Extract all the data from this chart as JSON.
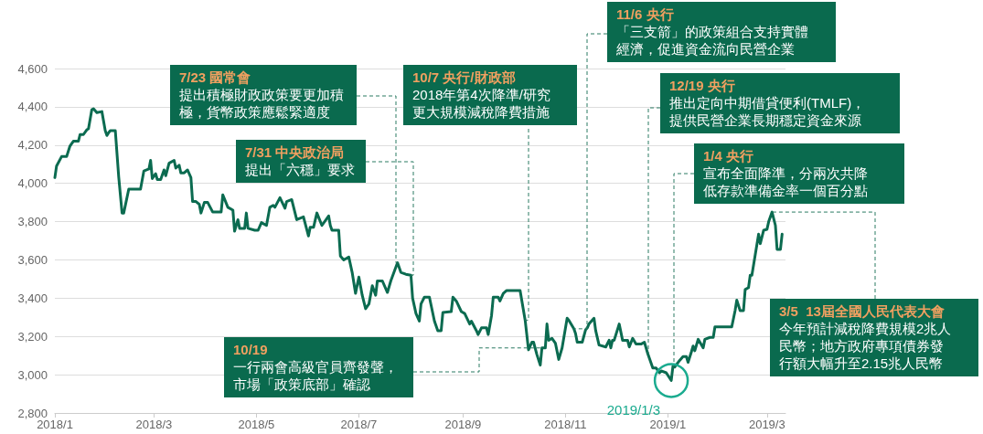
{
  "chart_data": {
    "type": "line",
    "grid": "y",
    "xlim": [
      "2018-01-01",
      "2019-03-12"
    ],
    "xticks": [
      {
        "value": "2018-01",
        "label": "2018/1"
      },
      {
        "value": "2018-03",
        "label": "2018/3"
      },
      {
        "value": "2018-05",
        "label": "2018/5"
      },
      {
        "value": "2018-07",
        "label": "2018/7"
      },
      {
        "value": "2018-09",
        "label": "2018/9"
      },
      {
        "value": "2018-11",
        "label": "2018/11"
      },
      {
        "value": "2019-01",
        "label": "2019/1"
      },
      {
        "value": "2019-03",
        "label": "2019/3"
      }
    ],
    "ylim": [
      2800,
      4600
    ],
    "yticks": [
      {
        "value": 2800,
        "label": "2,800"
      },
      {
        "value": 3000,
        "label": "3,000"
      },
      {
        "value": 3200,
        "label": "3,200"
      },
      {
        "value": 3400,
        "label": "3,400"
      },
      {
        "value": 3600,
        "label": "3,600"
      },
      {
        "value": 3800,
        "label": "3,800"
      },
      {
        "value": 4000,
        "label": "4,000"
      },
      {
        "value": 4200,
        "label": "4,200"
      },
      {
        "value": 4400,
        "label": "4,400"
      },
      {
        "value": 4600,
        "label": "4,600"
      }
    ],
    "series": [
      {
        "color": "#0b6b50",
        "x": [
          "2018-01-01",
          "2018-01-02",
          "2018-01-05",
          "2018-01-08",
          "2018-01-10",
          "2018-01-12",
          "2018-01-15",
          "2018-01-16",
          "2018-01-18",
          "2018-01-20",
          "2018-01-21",
          "2018-01-23",
          "2018-01-24",
          "2018-01-26",
          "2018-01-29",
          "2018-01-31",
          "2018-02-01",
          "2018-02-02",
          "2018-02-03",
          "2018-02-06",
          "2018-02-08",
          "2018-02-10",
          "2018-02-11",
          "2018-02-14",
          "2018-02-21",
          "2018-02-23",
          "2018-02-26",
          "2018-02-27",
          "2018-02-28",
          "2018-03-02",
          "2018-03-03",
          "2018-03-05",
          "2018-03-07",
          "2018-03-08",
          "2018-03-10",
          "2018-03-13",
          "2018-03-14",
          "2018-03-16",
          "2018-03-17",
          "2018-03-19",
          "2018-03-21",
          "2018-03-23",
          "2018-03-24",
          "2018-03-26",
          "2018-03-28",
          "2018-03-29",
          "2018-03-31",
          "2018-04-02",
          "2018-04-05",
          "2018-04-10",
          "2018-04-11",
          "2018-04-14",
          "2018-04-17",
          "2018-04-18",
          "2018-04-20",
          "2018-04-21",
          "2018-04-24",
          "2018-04-25",
          "2018-04-26",
          "2018-04-30",
          "2018-05-02",
          "2018-05-04",
          "2018-05-07",
          "2018-05-09",
          "2018-05-11",
          "2018-05-12",
          "2018-05-15",
          "2018-05-18",
          "2018-05-19",
          "2018-05-22",
          "2018-05-25",
          "2018-05-29",
          "2018-06-01",
          "2018-06-02",
          "2018-06-04",
          "2018-06-06",
          "2018-06-09",
          "2018-06-13",
          "2018-06-14",
          "2018-06-15",
          "2018-06-19",
          "2018-06-20",
          "2018-06-22",
          "2018-06-25",
          "2018-06-27",
          "2018-06-29",
          "2018-07-01",
          "2018-07-03",
          "2018-07-05",
          "2018-07-07",
          "2018-07-09",
          "2018-07-11",
          "2018-07-12",
          "2018-07-15",
          "2018-07-18",
          "2018-07-20",
          "2018-07-24",
          "2018-07-26",
          "2018-07-29",
          "2018-08-01",
          "2018-08-02",
          "2018-08-04",
          "2018-08-06",
          "2018-08-07",
          "2018-08-09",
          "2018-08-12",
          "2018-08-15",
          "2018-08-17",
          "2018-08-19",
          "2018-08-20",
          "2018-08-25",
          "2018-08-26",
          "2018-08-28",
          "2018-08-31",
          "2018-09-02",
          "2018-09-05",
          "2018-09-06",
          "2018-09-09",
          "2018-09-10",
          "2018-09-12",
          "2018-09-15",
          "2018-09-16",
          "2018-09-18",
          "2018-09-19",
          "2018-09-22",
          "2018-09-23",
          "2018-09-25",
          "2018-09-27",
          "2018-10-05",
          "2018-10-08",
          "2018-10-10",
          "2018-10-12",
          "2018-10-13",
          "2018-10-15",
          "2018-10-17",
          "2018-10-18",
          "2018-10-20",
          "2018-10-21",
          "2018-10-22",
          "2018-10-24",
          "2018-10-26",
          "2018-10-28",
          "2018-10-30",
          "2018-11-02",
          "2018-11-03",
          "2018-11-06",
          "2018-11-07",
          "2018-11-08",
          "2018-11-11",
          "2018-11-13",
          "2018-11-14",
          "2018-11-15",
          "2018-11-18",
          "2018-11-19",
          "2018-11-21",
          "2018-11-25",
          "2018-11-27",
          "2018-11-28",
          "2018-11-29",
          "2018-11-30",
          "2018-12-03",
          "2018-12-05",
          "2018-12-08",
          "2018-12-09",
          "2018-12-11",
          "2018-12-13",
          "2018-12-16",
          "2018-12-18",
          "2018-12-20",
          "2018-12-23",
          "2018-12-25",
          "2018-12-27",
          "2018-12-28",
          "2018-12-31",
          "2019-01-03",
          "2019-01-04",
          "2019-01-05",
          "2019-01-08",
          "2019-01-10",
          "2019-01-12",
          "2019-01-13",
          "2019-01-15",
          "2019-01-16",
          "2019-01-17",
          "2019-01-19",
          "2019-01-22",
          "2019-01-23",
          "2019-01-26",
          "2019-01-28",
          "2019-01-29",
          "2019-02-08",
          "2019-02-10",
          "2019-02-11",
          "2019-02-13",
          "2019-02-15",
          "2019-02-16",
          "2019-02-18",
          "2019-02-19",
          "2019-02-20",
          "2019-02-24",
          "2019-02-25",
          "2019-02-27",
          "2019-03-01",
          "2019-03-02",
          "2019-03-04",
          "2019-03-06",
          "2019-03-07",
          "2019-03-09",
          "2019-03-10"
        ],
        "values": [
          4030,
          4090,
          4140,
          4140,
          4195,
          4220,
          4220,
          4255,
          4255,
          4280,
          4285,
          4385,
          4390,
          4370,
          4375,
          4275,
          4250,
          4265,
          4275,
          4275,
          4035,
          3845,
          3845,
          3970,
          3970,
          4065,
          4075,
          4120,
          4025,
          4050,
          4020,
          4020,
          4070,
          4040,
          4105,
          4120,
          4080,
          4095,
          4055,
          4055,
          4070,
          4030,
          3905,
          3905,
          3890,
          3845,
          3900,
          3900,
          3850,
          3850,
          3940,
          3875,
          3860,
          3750,
          3810,
          3765,
          3765,
          3845,
          3765,
          3755,
          3755,
          3795,
          3780,
          3875,
          3885,
          3875,
          3925,
          3870,
          3905,
          3915,
          3810,
          3825,
          3725,
          3770,
          3770,
          3845,
          3780,
          3830,
          3780,
          3755,
          3755,
          3620,
          3600,
          3615,
          3535,
          3425,
          3510,
          3415,
          3345,
          3370,
          3465,
          3415,
          3490,
          3490,
          3430,
          3490,
          3585,
          3535,
          3525,
          3520,
          3400,
          3320,
          3280,
          3370,
          3405,
          3405,
          3280,
          3230,
          3230,
          3325,
          3330,
          3405,
          3385,
          3330,
          3320,
          3265,
          3280,
          3230,
          3210,
          3245,
          3245,
          3210,
          3310,
          3405,
          3405,
          3385,
          3425,
          3440,
          3440,
          3285,
          3130,
          3170,
          3170,
          3105,
          3050,
          3140,
          3140,
          3265,
          3180,
          3190,
          3165,
          3080,
          3140,
          3295,
          3285,
          3240,
          3215,
          3170,
          3170,
          3235,
          3245,
          3265,
          3295,
          3230,
          3155,
          3145,
          3180,
          3140,
          3180,
          3180,
          3265,
          3180,
          3180,
          3145,
          3190,
          3160,
          3160,
          3170,
          3110,
          3035,
          3035,
          3010,
          3020,
          3010,
          2970,
          3045,
          3040,
          3075,
          3095,
          3095,
          3065,
          3120,
          3150,
          3125,
          3185,
          3140,
          3185,
          3195,
          3195,
          3250,
          3250,
          3335,
          3390,
          3335,
          3335,
          3445,
          3455,
          3520,
          3520,
          3735,
          3685,
          3755,
          3760,
          3800,
          3850,
          3780,
          3655,
          3655,
          3735
        ]
      }
    ],
    "annotations": [
      "7/23 國常會",
      {
        "text": "提出積極財政政策要更加積極，貨幣政策應鬆緊適度",
        "x": "2018-07-24",
        "y": 3585
      },
      "7/31 中央政治局",
      {
        "text": "提出「六穩」要求",
        "x": "2018-08-01",
        "y": 3520
      },
      "10/7 央行/財政部",
      {
        "text": "2018年第4次降準/研究更大規模減稅降費措施",
        "x": "2018-10-08",
        "y": 3285
      },
      "11/6 央行",
      {
        "text": "「三支箭」的政策組合支持實體經濟，促進資金流向民營企業",
        "x": "2018-11-06",
        "y": 3240
      },
      "12/19 央行",
      {
        "text": "推出定向中期借貸便利(TMLF)，提供民營企業長期穩定資金來源",
        "x": "2018-12-20",
        "y": 3110
      },
      "1/4 央行",
      {
        "text": "宣布全面降準，分兩次共降低存款準備金率一個百分點",
        "x": "2019-01-04",
        "y": 3045
      },
      {
        "text": "3/5  13屆全國人民代表大會",
        "x": "2019-03-04",
        "y": 3850
      },
      "今年預計減稅降費規模2兆人民幣；地方政府專項債券發行額大幅升至2.15兆人民幣",
      "10/19",
      {
        "text": "一行兩會高級官員齊發聲，市場「政策底部」確認",
        "x": "2018-10-18",
        "y": 3140
      },
      {
        "text": "2019/1/3",
        "x": "2019-01-03",
        "y": 2970
      }
    ]
  }
}
